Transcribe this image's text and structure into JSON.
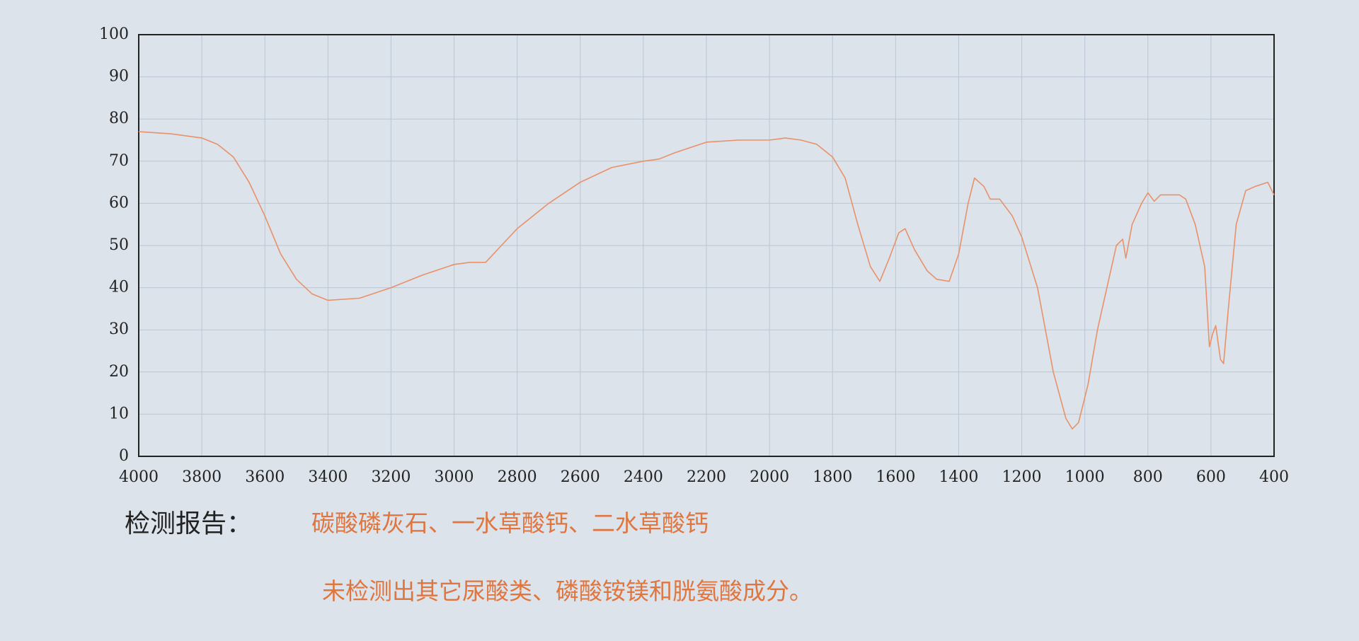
{
  "chart_data": {
    "type": "line",
    "x": [
      4000,
      3900,
      3800,
      3750,
      3700,
      3650,
      3600,
      3550,
      3500,
      3450,
      3400,
      3300,
      3200,
      3100,
      3000,
      2950,
      2900,
      2850,
      2800,
      2700,
      2600,
      2500,
      2400,
      2350,
      2300,
      2200,
      2100,
      2000,
      1950,
      1900,
      1850,
      1800,
      1760,
      1720,
      1680,
      1650,
      1620,
      1590,
      1570,
      1540,
      1500,
      1470,
      1430,
      1400,
      1370,
      1350,
      1320,
      1300,
      1270,
      1230,
      1200,
      1150,
      1100,
      1060,
      1040,
      1020,
      990,
      960,
      930,
      900,
      880,
      870,
      850,
      820,
      800,
      780,
      760,
      700,
      680,
      650,
      620,
      605,
      595,
      585,
      570,
      560,
      545,
      520,
      490,
      460,
      420,
      400
    ],
    "values": [
      77,
      76.5,
      75.5,
      74,
      71,
      65,
      57,
      48,
      42,
      38.5,
      37,
      37.5,
      40,
      43,
      45.5,
      46,
      46,
      50,
      54,
      60,
      65,
      68.5,
      70,
      70.5,
      72,
      74.5,
      75,
      75,
      75.5,
      75,
      74,
      71,
      66,
      55,
      45,
      41.5,
      47,
      53,
      54,
      49,
      44,
      42,
      41.5,
      48,
      60,
      66,
      64,
      61,
      61,
      57,
      52,
      40,
      20,
      9,
      6.5,
      8,
      17,
      30,
      40,
      50,
      51.5,
      47,
      55,
      60,
      62.5,
      60.5,
      62,
      62,
      61,
      55,
      45,
      26,
      29,
      31,
      23,
      22,
      35,
      55,
      63,
      64,
      65,
      62
    ],
    "color": "#e8916a",
    "xlim": [
      4000,
      400
    ],
    "xticks": [
      4000,
      3800,
      3600,
      3400,
      3200,
      3000,
      2800,
      2600,
      2400,
      2200,
      2000,
      1800,
      1600,
      1400,
      1200,
      1000,
      800,
      600,
      400
    ],
    "ylim": [
      0,
      100
    ],
    "yticks": [
      0,
      10,
      20,
      30,
      40,
      50,
      60,
      70,
      80,
      90,
      100
    ],
    "grid": true
  },
  "report": {
    "label": "检测报告：",
    "lines": [
      "碳酸磷灰石、一水草酸钙、二水草酸钙",
      "未检测出其它尿酸类、磷酸铵镁和胱氨酸成分。"
    ]
  }
}
